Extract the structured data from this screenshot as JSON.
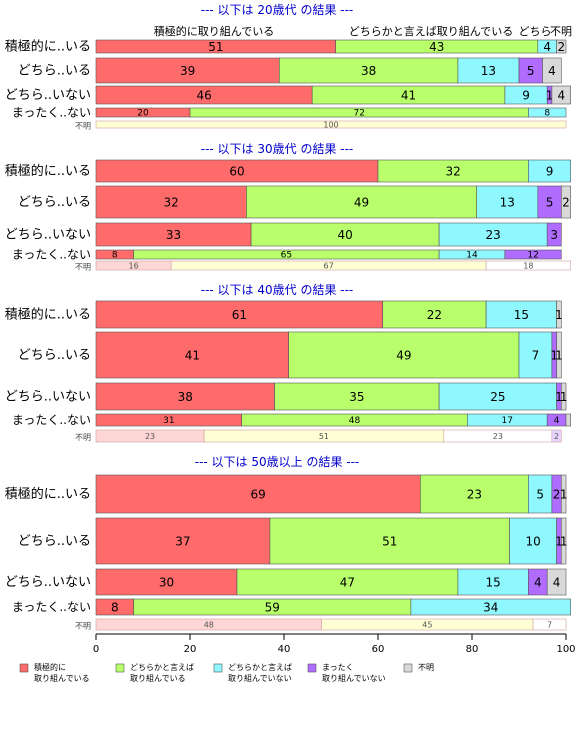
{
  "colors": {
    "series": [
      "#ff6b6b",
      "#b8ff6b",
      "#8ff8ff",
      "#b06bff",
      "#d9d9d9"
    ],
    "light": [
      "#ffd6d6",
      "#ffffd6",
      "#ffffff",
      "#e6d6ff",
      "#ffffff"
    ],
    "title": "#0000cc"
  },
  "header_labels": [
    "積極的に取り組んでいる",
    "どちらかと言えば取り組んでいる",
    "どちら",
    "不明"
  ],
  "chart_data": {
    "type": "bar",
    "orientation": "horizontal",
    "stacked": true,
    "xlim": [
      0,
      100
    ],
    "x_ticks": [
      0,
      20,
      40,
      60,
      80,
      100
    ],
    "grid": false,
    "legend_position": "bottom-left",
    "series": [
      {
        "name": "積極的に\n取り組んでいる"
      },
      {
        "name": "どちらかと言えば\n取り組んでいる"
      },
      {
        "name": "どちらかと言えば\n取り組んでいない"
      },
      {
        "name": "まったく\n取り組んでいない"
      },
      {
        "name": "不明"
      }
    ],
    "panels": [
      {
        "title": "--- 以下は 20歳代 の結果 ---",
        "rows": [
          {
            "label": "積極的に..いる",
            "values": [
              51,
              43,
              4,
              0,
              2
            ],
            "labels": [
              "51",
              "43",
              "4",
              "",
              "2"
            ]
          },
          {
            "label": "どちら..いる",
            "values": [
              39,
              38,
              13,
              5,
              4
            ],
            "labels": [
              "39",
              "38",
              "13",
              "5",
              "4"
            ]
          },
          {
            "label": "どちら..いない",
            "values": [
              46,
              41,
              9,
              1,
              4
            ],
            "labels": [
              "46",
              "41",
              "9",
              "1",
              "4"
            ]
          },
          {
            "label": "まったく..ない",
            "values": [
              20,
              72,
              8,
              0,
              0
            ],
            "labels": [
              "20",
              "72",
              "8",
              "",
              ""
            ]
          },
          {
            "label": "不明",
            "values": [
              0,
              100,
              0,
              0,
              0
            ],
            "labels": [
              "",
              "100",
              "",
              "",
              ""
            ]
          }
        ]
      },
      {
        "title": "--- 以下は 30歳代 の結果 ---",
        "rows": [
          {
            "label": "積極的に..いる",
            "values": [
              60,
              32,
              9,
              0,
              0
            ],
            "labels": [
              "60",
              "32",
              "9",
              "",
              ""
            ]
          },
          {
            "label": "どちら..いる",
            "values": [
              32,
              49,
              13,
              5,
              2
            ],
            "labels": [
              "32",
              "49",
              "13",
              "5",
              "2"
            ]
          },
          {
            "label": "どちら..いない",
            "values": [
              33,
              40,
              23,
              3,
              0
            ],
            "labels": [
              "33",
              "40",
              "23",
              "3",
              ""
            ]
          },
          {
            "label": "まったく..ない",
            "values": [
              8,
              65,
              14,
              12,
              0
            ],
            "labels": [
              "8",
              "65",
              "14",
              "12",
              ""
            ]
          },
          {
            "label": "不明",
            "values": [
              16,
              67,
              18,
              0,
              0
            ],
            "labels": [
              "16",
              "67",
              "18",
              "",
              ""
            ]
          }
        ]
      },
      {
        "title": "--- 以下は 40歳代 の結果 ---",
        "rows": [
          {
            "label": "積極的に..いる",
            "values": [
              61,
              22,
              15,
              0,
              1
            ],
            "labels": [
              "61",
              "22",
              "15",
              "",
              "1"
            ]
          },
          {
            "label": "どちら..いる",
            "values": [
              41,
              49,
              7,
              1,
              1
            ],
            "labels": [
              "41",
              "49",
              "7",
              "1",
              "1"
            ]
          },
          {
            "label": "どちら..いない",
            "values": [
              38,
              35,
              25,
              1,
              1
            ],
            "labels": [
              "38",
              "35",
              "25",
              "1",
              "1"
            ]
          },
          {
            "label": "まったく..ない",
            "values": [
              31,
              48,
              17,
              4,
              1
            ],
            "labels": [
              "31",
              "48",
              "17",
              "4",
              ""
            ]
          },
          {
            "label": "不明",
            "values": [
              23,
              51,
              23,
              2,
              0
            ],
            "labels": [
              "23",
              "51",
              "23",
              "2",
              ""
            ]
          }
        ]
      },
      {
        "title": "--- 以下は 50歳以上 の結果 ---",
        "rows": [
          {
            "label": "積極的に..いる",
            "values": [
              69,
              23,
              5,
              2,
              1
            ],
            "labels": [
              "69",
              "23",
              "5",
              "2",
              "1"
            ]
          },
          {
            "label": "どちら..いる",
            "values": [
              37,
              51,
              10,
              1,
              1
            ],
            "labels": [
              "37",
              "51",
              "10",
              "1",
              "1"
            ]
          },
          {
            "label": "どちら..いない",
            "values": [
              30,
              47,
              15,
              4,
              4
            ],
            "labels": [
              "30",
              "47",
              "15",
              "4",
              "4"
            ]
          },
          {
            "label": "まったく..ない",
            "values": [
              8,
              59,
              34,
              0,
              0
            ],
            "labels": [
              "8",
              "59",
              "34",
              "",
              ""
            ]
          },
          {
            "label": "不明",
            "values": [
              48,
              45,
              7,
              0,
              0
            ],
            "labels": [
              "48",
              "45",
              "7",
              "",
              ""
            ]
          }
        ]
      }
    ]
  }
}
